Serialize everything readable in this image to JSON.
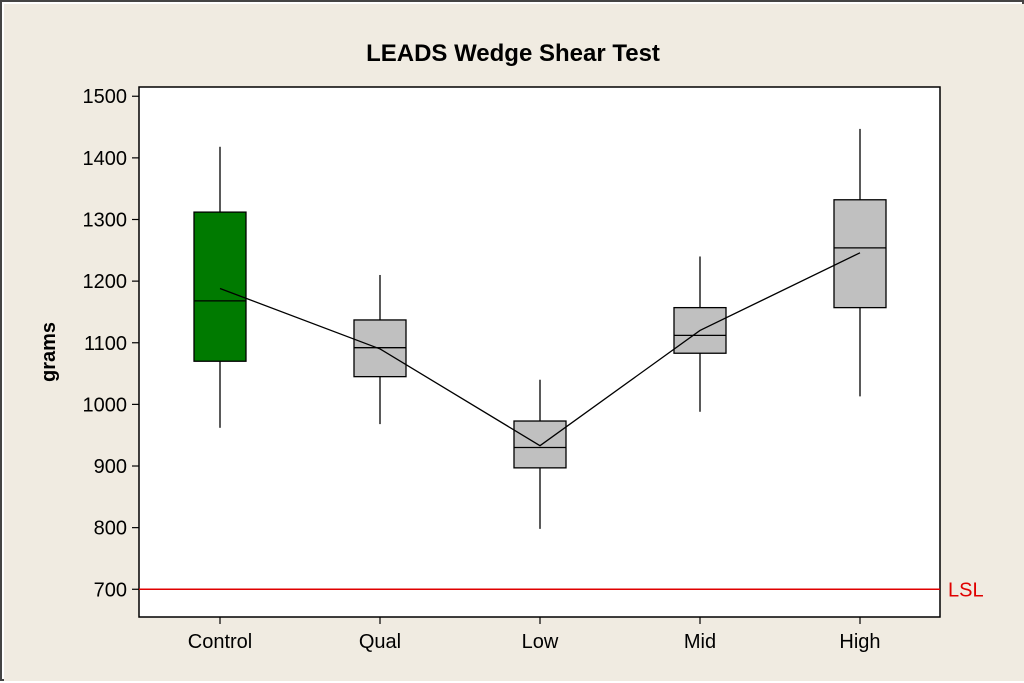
{
  "chart_data": {
    "type": "boxplot",
    "title": "LEADS Wedge Shear Test",
    "xlabel": "",
    "ylabel": "grams",
    "ylim": [
      655,
      1515
    ],
    "yticks": [
      700,
      800,
      900,
      1000,
      1100,
      1200,
      1300,
      1400,
      1500
    ],
    "categories": [
      "Control",
      "Qual",
      "Low",
      "Mid",
      "High"
    ],
    "boxes": [
      {
        "category": "Control",
        "min": 962,
        "q1": 1070,
        "median": 1168,
        "q3": 1312,
        "max": 1418,
        "mean": 1188,
        "color": "#007a00"
      },
      {
        "category": "Qual",
        "min": 968,
        "q1": 1045,
        "median": 1092,
        "q3": 1137,
        "max": 1210,
        "mean": 1090,
        "color": "#c0c0c0"
      },
      {
        "category": "Low",
        "min": 798,
        "q1": 897,
        "median": 930,
        "q3": 973,
        "max": 1040,
        "mean": 933,
        "color": "#c0c0c0"
      },
      {
        "category": "Mid",
        "min": 988,
        "q1": 1083,
        "median": 1112,
        "q3": 1157,
        "max": 1240,
        "mean": 1120,
        "color": "#c0c0c0"
      },
      {
        "category": "High",
        "min": 1013,
        "q1": 1157,
        "median": 1254,
        "q3": 1332,
        "max": 1447,
        "mean": 1246,
        "color": "#c0c0c0"
      }
    ],
    "mean_connect_line": true,
    "reference_line": {
      "label": "LSL",
      "value": 700,
      "color": "#e00000"
    },
    "grid": false,
    "plot_background": "#ffffff",
    "outer_background": "#f0ebe1"
  }
}
